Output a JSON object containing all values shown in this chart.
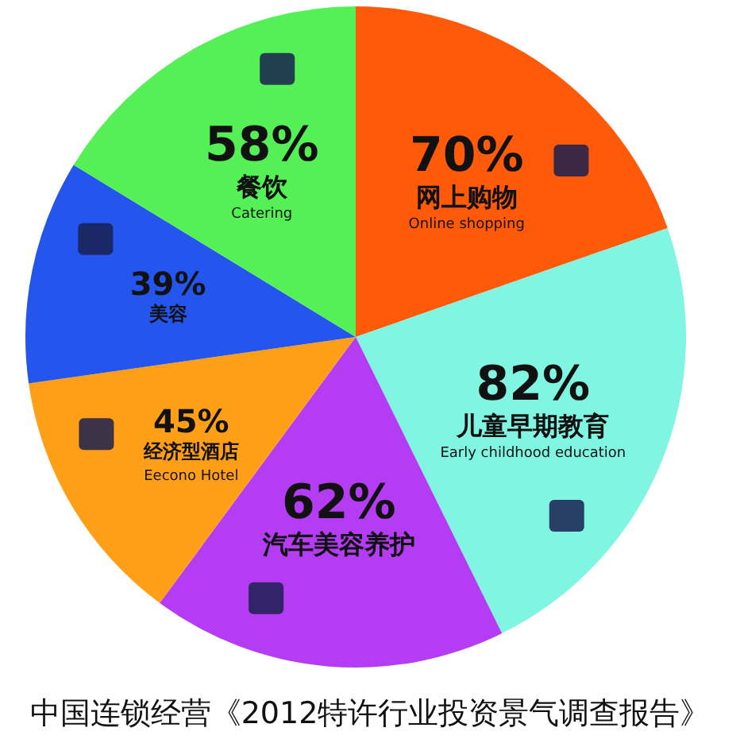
{
  "chart_data": {
    "type": "pie",
    "categories": [
      "网上购物\nOnline shopping",
      "儿童早期教育\nEarly childhood education",
      "汽车美容养护",
      "经济型酒店\nEecono Hotel",
      "美容",
      "餐饮\nCatering"
    ],
    "values": [
      70,
      82,
      62,
      45,
      39,
      58
    ],
    "colors": [
      "#ff5a0a",
      "#80f5e2",
      "#b43cf2",
      "#ff9f18",
      "#2456ee",
      "#55f055"
    ],
    "value_labels": [
      "70%",
      "82%",
      "62%",
      "45%",
      "39%",
      "58%"
    ],
    "annotations": [
      "中国连锁经营《2012特许行业投资景气调查报告》"
    ]
  }
}
